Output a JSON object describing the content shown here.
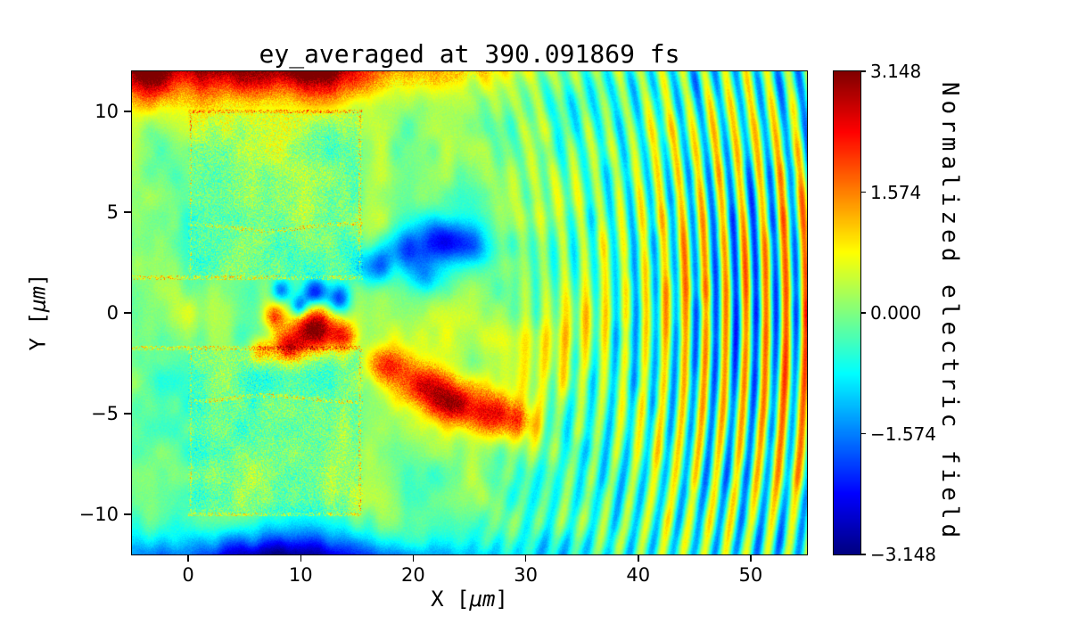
{
  "figure": {
    "background_color": "#ffffff"
  },
  "chart_data": {
    "type": "heatmap",
    "title": "ey_averaged at 390.091869 fs",
    "xlabel": "X [μm]",
    "ylabel": "Y [μm]",
    "xlabel_parts": {
      "prefix": "X [",
      "italic": "μm",
      "suffix": "]"
    },
    "ylabel_parts": {
      "prefix": "Y [",
      "italic": "μm",
      "suffix": "]"
    },
    "xlim": [
      -5,
      55
    ],
    "ylim": [
      -12,
      12
    ],
    "xticks": [
      0,
      10,
      20,
      30,
      40,
      50
    ],
    "xtick_labels": [
      "0",
      "10",
      "20",
      "30",
      "40",
      "50"
    ],
    "yticks": [
      -10,
      -5,
      0,
      5,
      10
    ],
    "ytick_labels": [
      "−10",
      "−5",
      "0",
      "5",
      "10"
    ],
    "colorbar": {
      "label": "Normalized electric field",
      "vmin": -3.148,
      "vmax": 3.148,
      "ticks": [
        3.148,
        1.574,
        0.0,
        -1.574,
        -3.148
      ],
      "tick_labels": [
        "3.148",
        "1.574",
        "0.000",
        "−1.574",
        "−3.148"
      ],
      "colormap": "jet"
    },
    "field_model": {
      "fine_noise_amp": 0.24,
      "mottle": [
        {
          "scale": 2.8,
          "amp": 0.4,
          "seed": 3
        },
        {
          "scale": 1.15,
          "amp": 0.26,
          "seed": 5
        }
      ],
      "target": {
        "x_range": [
          0,
          15.5
        ],
        "y_inner": 1.75,
        "y_outer": 10.0,
        "inner_edge_base": 4.45,
        "inner_edge_dip": 0.35,
        "speckle_amp": 0.45,
        "edge_speckle_amp": 1.5,
        "edge_halfwidth": 0.1
      },
      "blobs": [
        {
          "x": 2,
          "y": 12.9,
          "sx": 5.0,
          "sy": 1.7,
          "amp": 3.8
        },
        {
          "x": 11,
          "y": 12.6,
          "sx": 3.0,
          "sy": 1.3,
          "amp": 2.8
        },
        {
          "x": -4.5,
          "y": 12.3,
          "sx": 1.8,
          "sy": 1.2,
          "amp": 2.2
        },
        {
          "x": 19,
          "y": 13.0,
          "sx": 6.0,
          "sy": 1.6,
          "amp": 1.5
        },
        {
          "x": 30,
          "y": 13.2,
          "sx": 8.0,
          "sy": 1.5,
          "amp": 0.8
        },
        {
          "x": 6,
          "y": -12.8,
          "sx": 4.5,
          "sy": 1.4,
          "amp": -3.4
        },
        {
          "x": 15,
          "y": -12.9,
          "sx": 5.0,
          "sy": 1.2,
          "amp": -2.0
        },
        {
          "x": 26,
          "y": -13.2,
          "sx": 7.0,
          "sy": 1.4,
          "amp": -1.2
        },
        {
          "x": -3.5,
          "y": -12.5,
          "sx": 2.0,
          "sy": 1.0,
          "amp": -1.6
        },
        {
          "x": 11.4,
          "y": -0.9,
          "sx": 1.5,
          "sy": 0.8,
          "amp": 3.0
        },
        {
          "x": 8.9,
          "y": -1.7,
          "sx": 0.9,
          "sy": 0.6,
          "amp": 2.4
        },
        {
          "x": 6.6,
          "y": -1.9,
          "sx": 0.8,
          "sy": 0.5,
          "amp": 1.7
        },
        {
          "x": 7.6,
          "y": -0.2,
          "sx": 0.6,
          "sy": 0.45,
          "amp": 1.5
        },
        {
          "x": 13.9,
          "y": -1.2,
          "sx": 0.8,
          "sy": 0.5,
          "amp": 1.6
        },
        {
          "x": 9.9,
          "y": 0.3,
          "sx": 0.55,
          "sy": 0.4,
          "amp": -2.2
        },
        {
          "x": 11.3,
          "y": 1.0,
          "sx": 0.8,
          "sy": 0.5,
          "amp": -2.6
        },
        {
          "x": 13.4,
          "y": 0.7,
          "sx": 0.7,
          "sy": 0.5,
          "amp": -2.0
        },
        {
          "x": 8.3,
          "y": 1.1,
          "sx": 0.6,
          "sy": 0.4,
          "amp": -1.5
        },
        {
          "x": 16.6,
          "y": 2.3,
          "sx": 1.2,
          "sy": 0.7,
          "amp": -1.8
        },
        {
          "x": 19.6,
          "y": 3.1,
          "sx": 1.5,
          "sy": 0.8,
          "amp": -2.0
        },
        {
          "x": 22.6,
          "y": 3.7,
          "sx": 1.5,
          "sy": 0.8,
          "amp": -1.7
        },
        {
          "x": 25.4,
          "y": 3.3,
          "sx": 1.3,
          "sy": 0.7,
          "amp": -1.3
        },
        {
          "x": 21.0,
          "y": 1.6,
          "sx": 1.0,
          "sy": 0.6,
          "amp": -1.2
        },
        {
          "x": 17.6,
          "y": -2.7,
          "sx": 1.3,
          "sy": 0.7,
          "amp": 1.7
        },
        {
          "x": 20.6,
          "y": -3.6,
          "sx": 1.6,
          "sy": 0.8,
          "amp": 2.1
        },
        {
          "x": 23.6,
          "y": -4.4,
          "sx": 1.6,
          "sy": 0.8,
          "amp": 2.3
        },
        {
          "x": 26.6,
          "y": -5.0,
          "sx": 1.5,
          "sy": 0.8,
          "amp": 1.9
        },
        {
          "x": 29.2,
          "y": -5.3,
          "sx": 1.2,
          "sy": 0.7,
          "amp": 1.4
        },
        {
          "x": 22.0,
          "y": -1.2,
          "sx": 4.0,
          "sy": 1.2,
          "amp": 0.5
        },
        {
          "x": 30.0,
          "y": -2.0,
          "sx": 4.0,
          "sy": 1.5,
          "amp": 0.4
        }
      ],
      "blob_speckle": {
        "threshold": 1.0,
        "amp": 0.7
      },
      "wake": {
        "center": [
          10,
          0
        ],
        "start_radius": 16,
        "wavelength": 1.78,
        "amp_growth": 0.085,
        "amp_max": 1.9,
        "y_width": 8.5
      },
      "edge_bias": {
        "amp": -0.35,
        "x_start": 25,
        "x_ramp": 12,
        "neg_y_factor": 1.3,
        "pos_y_factor": 0.9
      }
    }
  }
}
